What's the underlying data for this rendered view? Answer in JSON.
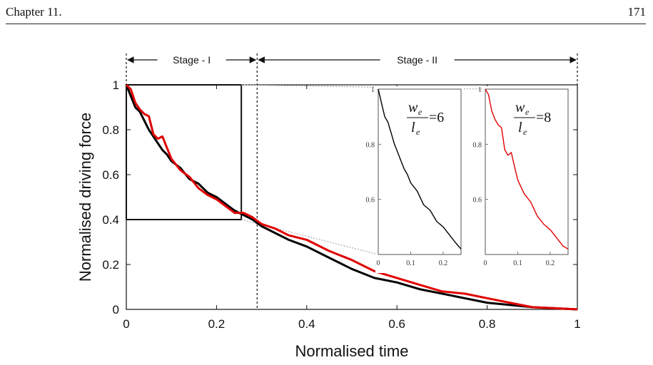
{
  "header": {
    "chapter": "Chapter 11.",
    "page_number": "171"
  },
  "chart_data": [
    {
      "type": "line",
      "xlabel": "Normalised time",
      "ylabel": "Normalised driving force",
      "xlim": [
        0,
        1
      ],
      "ylim": [
        0,
        1
      ],
      "xticks": [
        "0",
        "0.2",
        "0.4",
        "0.6",
        "0.8",
        "1"
      ],
      "yticks": [
        "0",
        "0.2",
        "0.4",
        "0.6",
        "0.8",
        "1"
      ],
      "stage_labels": [
        "Stage - I",
        "Stage - II"
      ],
      "stage_boundary_x": 0.29,
      "zoom_box": {
        "x": [
          0,
          0.255
        ],
        "y": [
          0.4,
          1.0
        ]
      },
      "colors": {
        "black_series": "#000000",
        "red_series": "#e00000",
        "guide": "#aaaaaa"
      },
      "series": [
        {
          "color": "black",
          "x": [
            0,
            0.01,
            0.02,
            0.03,
            0.04,
            0.05,
            0.06,
            0.07,
            0.08,
            0.09,
            0.1,
            0.12,
            0.14,
            0.16,
            0.18,
            0.2,
            0.22,
            0.24,
            0.26,
            0.28,
            0.3,
            0.33,
            0.36,
            0.4,
            0.45,
            0.5,
            0.55,
            0.6,
            0.65,
            0.7,
            0.75,
            0.8,
            0.85,
            0.9,
            0.95,
            1.0
          ],
          "values": [
            1.0,
            0.95,
            0.9,
            0.88,
            0.84,
            0.8,
            0.77,
            0.74,
            0.71,
            0.69,
            0.66,
            0.63,
            0.58,
            0.56,
            0.52,
            0.5,
            0.47,
            0.44,
            0.42,
            0.4,
            0.37,
            0.34,
            0.31,
            0.28,
            0.23,
            0.18,
            0.14,
            0.12,
            0.09,
            0.07,
            0.05,
            0.03,
            0.02,
            0.01,
            0.005,
            0.0
          ]
        },
        {
          "color": "red",
          "x": [
            0,
            0.01,
            0.02,
            0.03,
            0.04,
            0.05,
            0.06,
            0.07,
            0.08,
            0.09,
            0.1,
            0.12,
            0.14,
            0.16,
            0.18,
            0.2,
            0.22,
            0.24,
            0.26,
            0.28,
            0.3,
            0.33,
            0.36,
            0.4,
            0.45,
            0.5,
            0.55,
            0.6,
            0.65,
            0.7,
            0.75,
            0.8,
            0.85,
            0.9,
            0.95,
            1.0
          ],
          "values": [
            1.0,
            0.98,
            0.92,
            0.89,
            0.87,
            0.86,
            0.78,
            0.76,
            0.77,
            0.72,
            0.67,
            0.62,
            0.59,
            0.54,
            0.51,
            0.49,
            0.46,
            0.43,
            0.43,
            0.41,
            0.38,
            0.36,
            0.33,
            0.31,
            0.26,
            0.22,
            0.17,
            0.14,
            0.11,
            0.08,
            0.07,
            0.05,
            0.03,
            0.01,
            0.005,
            0.0
          ]
        }
      ]
    },
    {
      "type": "line",
      "inset": "left",
      "annotation": {
        "num": "w",
        "num_sub": "e",
        "den": "l",
        "den_sub": "e",
        "value": "=6"
      },
      "xlim": [
        0,
        0.255
      ],
      "ylim": [
        0.4,
        1.0
      ],
      "xticks": [
        "0",
        "0.1",
        "0.2"
      ],
      "yticks": [
        "0.6",
        "0.8",
        "1"
      ],
      "series": [
        {
          "color": "black",
          "x": [
            0,
            0.01,
            0.02,
            0.03,
            0.04,
            0.05,
            0.06,
            0.07,
            0.08,
            0.09,
            0.1,
            0.12,
            0.14,
            0.16,
            0.18,
            0.2,
            0.22,
            0.24,
            0.255
          ],
          "values": [
            1.0,
            0.95,
            0.9,
            0.88,
            0.84,
            0.8,
            0.77,
            0.74,
            0.71,
            0.69,
            0.66,
            0.63,
            0.58,
            0.56,
            0.52,
            0.5,
            0.47,
            0.44,
            0.42
          ]
        }
      ]
    },
    {
      "type": "line",
      "inset": "right",
      "annotation": {
        "num": "w",
        "num_sub": "e",
        "den": "l",
        "den_sub": "e",
        "value": "=8"
      },
      "xlim": [
        0,
        0.255
      ],
      "ylim": [
        0.4,
        1.0
      ],
      "xticks": [
        "0",
        "0.1",
        "0.2"
      ],
      "yticks": [
        "0.6",
        "0.8",
        "1"
      ],
      "series": [
        {
          "color": "red",
          "x": [
            0,
            0.01,
            0.02,
            0.03,
            0.04,
            0.05,
            0.06,
            0.07,
            0.08,
            0.09,
            0.1,
            0.12,
            0.14,
            0.16,
            0.18,
            0.2,
            0.22,
            0.24,
            0.255
          ],
          "values": [
            1.0,
            0.98,
            0.92,
            0.89,
            0.87,
            0.86,
            0.78,
            0.76,
            0.77,
            0.72,
            0.67,
            0.62,
            0.59,
            0.54,
            0.51,
            0.49,
            0.46,
            0.43,
            0.42
          ]
        }
      ]
    }
  ]
}
